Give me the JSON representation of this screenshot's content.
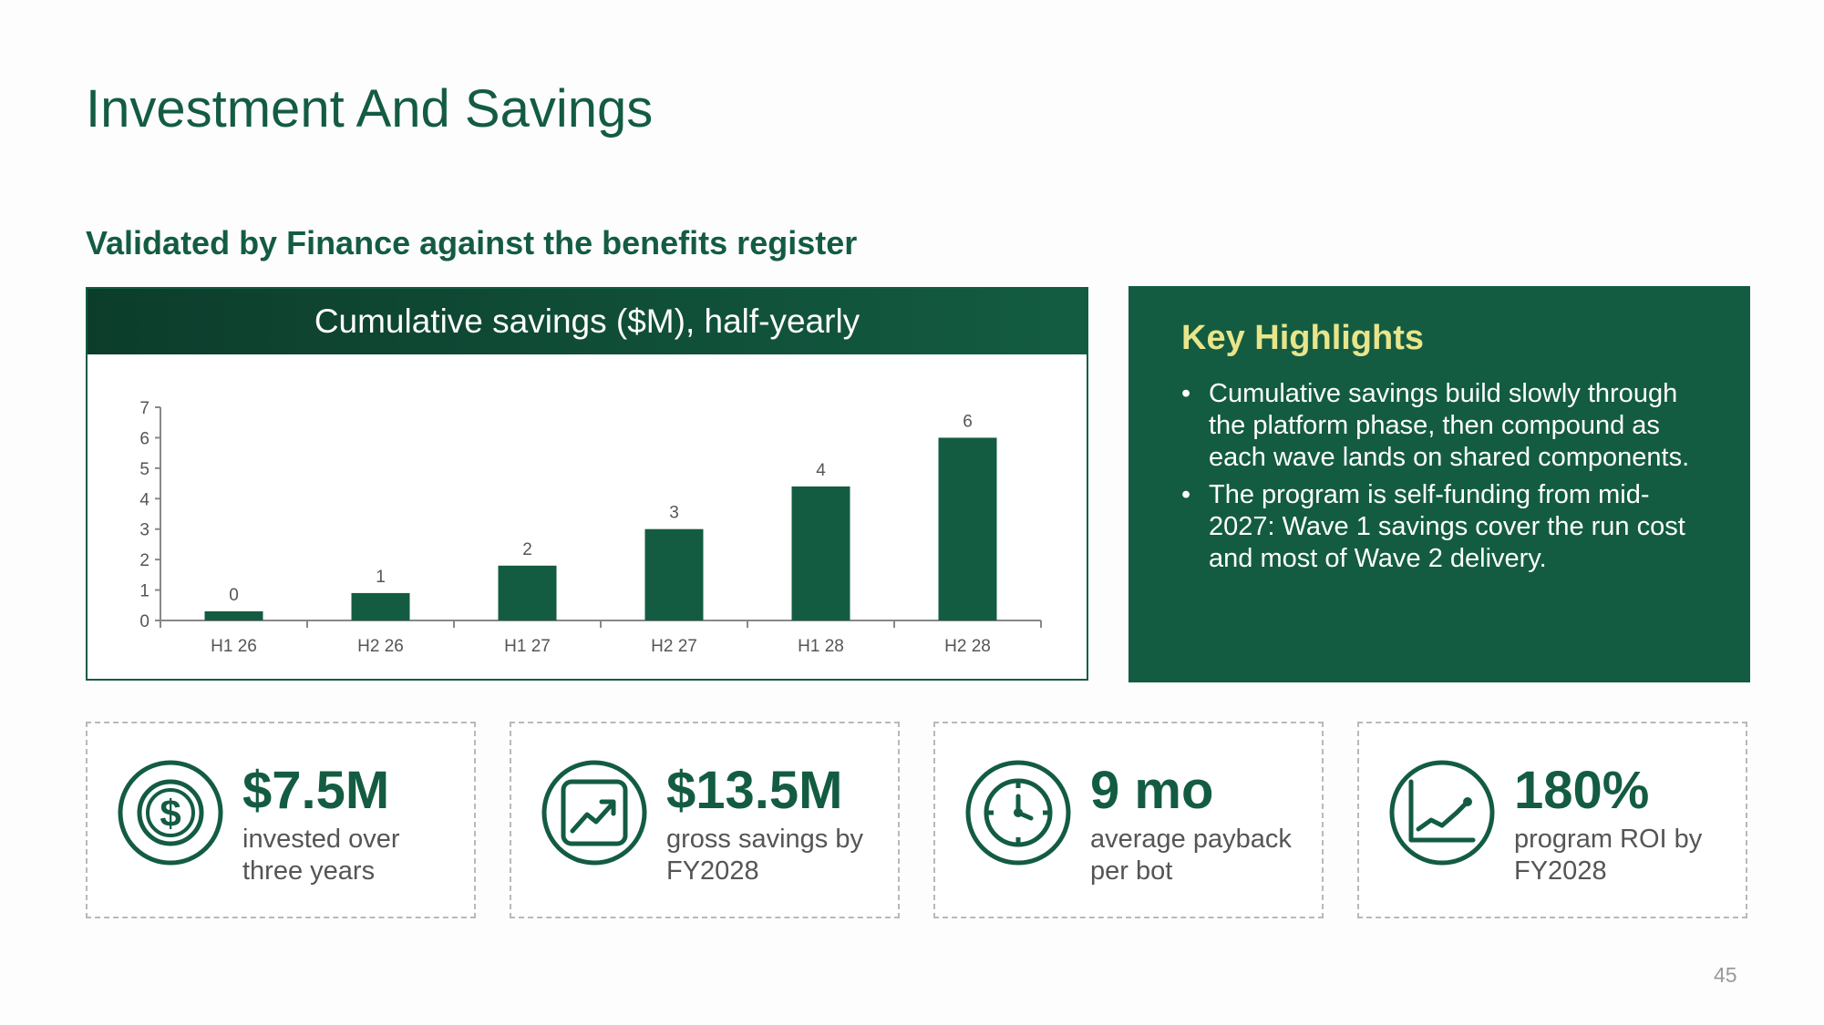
{
  "slide": {
    "title": "Investment And Savings",
    "subtitle": "Validated by Finance against the benefits register",
    "page_number": "45"
  },
  "chart_panel": {
    "header": "Cumulative savings ($M), half-yearly"
  },
  "chart_data": {
    "type": "bar",
    "title": "Cumulative savings ($M), half-yearly",
    "categories": [
      "H1 26",
      "H2 26",
      "H1 27",
      "H2 27",
      "H1 28",
      "H2 28"
    ],
    "values": [
      0.3,
      0.9,
      1.8,
      3.0,
      4.4,
      6.0
    ],
    "data_labels": [
      "0",
      "1",
      "2",
      "3",
      "4",
      "6"
    ],
    "ylim": [
      0,
      7
    ],
    "yticks": [
      "0",
      "1",
      "2",
      "3",
      "4",
      "5",
      "6",
      "7"
    ],
    "xlabel": "",
    "ylabel": "",
    "grid": false,
    "bar_color": "#135c42"
  },
  "highlights": {
    "heading": "Key Highlights",
    "items": [
      "Cumulative savings build slowly through the platform phase, then compound as each wave lands on shared components.",
      "The program is self-funding from mid-2027: Wave 1 savings cover the run cost and most of Wave 2 delivery."
    ]
  },
  "kpis": [
    {
      "icon": "dollar-coin-icon",
      "value": "$7.5M",
      "label": "invested over three years"
    },
    {
      "icon": "trend-up-chart-icon",
      "value": "$13.5M",
      "label": "gross savings by FY2028"
    },
    {
      "icon": "clock-icon",
      "value": "9 mo",
      "label": "average payback per bot"
    },
    {
      "icon": "line-graph-icon",
      "value": "180%",
      "label": "program ROI by FY2028"
    }
  ],
  "colors": {
    "primary_green": "#135c42",
    "highlight_heading": "#e9e58a",
    "muted_text": "#555555"
  }
}
